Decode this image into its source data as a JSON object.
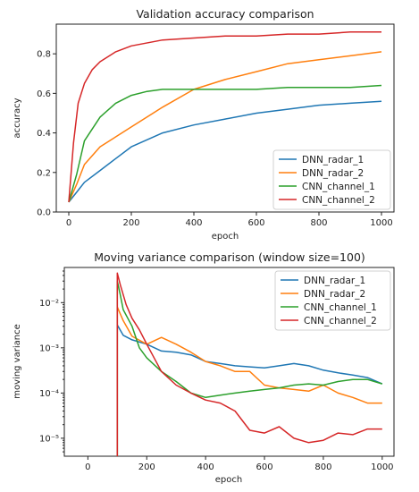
{
  "chart_data": [
    {
      "type": "line",
      "title": "Validation accuracy comparison",
      "xlabel": "epoch",
      "ylabel": "accuracy",
      "xlim": [
        -40,
        1040
      ],
      "ylim": [
        0,
        0.95
      ],
      "xticks": [
        0,
        200,
        400,
        600,
        800,
        1000
      ],
      "xtick_labels": [
        "0",
        "200",
        "400",
        "600",
        "800",
        "1000"
      ],
      "yticks": [
        0.0,
        0.2,
        0.4,
        0.6,
        0.8
      ],
      "ytick_labels": [
        "0.0",
        "0.2",
        "0.4",
        "0.6",
        "0.8"
      ],
      "legend": "bottom-right",
      "grid": false,
      "series": [
        {
          "name": "DNN_radar_1",
          "color": "#1f77b4",
          "x": [
            0,
            25,
            50,
            100,
            150,
            200,
            300,
            400,
            500,
            600,
            700,
            800,
            900,
            1000
          ],
          "y": [
            0.05,
            0.1,
            0.15,
            0.21,
            0.27,
            0.33,
            0.4,
            0.44,
            0.47,
            0.5,
            0.52,
            0.54,
            0.55,
            0.56
          ]
        },
        {
          "name": "DNN_radar_2",
          "color": "#ff7f0e",
          "x": [
            0,
            25,
            50,
            100,
            150,
            200,
            300,
            400,
            500,
            600,
            700,
            800,
            900,
            1000
          ],
          "y": [
            0.05,
            0.14,
            0.24,
            0.33,
            0.38,
            0.43,
            0.53,
            0.62,
            0.67,
            0.71,
            0.75,
            0.77,
            0.79,
            0.81
          ]
        },
        {
          "name": "CNN_channel_1",
          "color": "#2ca02c",
          "x": [
            0,
            25,
            50,
            100,
            150,
            200,
            250,
            300,
            400,
            500,
            600,
            700,
            800,
            900,
            1000
          ],
          "y": [
            0.05,
            0.19,
            0.36,
            0.48,
            0.55,
            0.59,
            0.61,
            0.62,
            0.62,
            0.62,
            0.62,
            0.63,
            0.63,
            0.63,
            0.64
          ]
        },
        {
          "name": "CNN_channel_2",
          "color": "#d62728",
          "x": [
            0,
            15,
            30,
            50,
            75,
            100,
            150,
            200,
            300,
            400,
            500,
            600,
            700,
            800,
            900,
            1000
          ],
          "y": [
            0.05,
            0.35,
            0.55,
            0.65,
            0.72,
            0.76,
            0.81,
            0.84,
            0.87,
            0.88,
            0.89,
            0.89,
            0.9,
            0.9,
            0.91,
            0.91
          ]
        }
      ]
    },
    {
      "type": "line",
      "title": "Moving variance comparison (window size=100)",
      "xlabel": "epoch",
      "ylabel": "moving variance",
      "yscale": "log",
      "xlim": [
        -80,
        1040
      ],
      "ylim": [
        4e-06,
        0.06
      ],
      "xticks": [
        0,
        200,
        400,
        600,
        800,
        1000
      ],
      "xtick_labels": [
        "0",
        "200",
        "400",
        "600",
        "800",
        "1000"
      ],
      "yticks": [
        1e-05,
        0.0001,
        0.001,
        0.01
      ],
      "ytick_labels": [
        "10⁻⁵",
        "10⁻⁴",
        "10⁻³",
        "10⁻²"
      ],
      "legend": "top-right",
      "grid": false,
      "series": [
        {
          "name": "DNN_radar_1",
          "color": "#1f77b4",
          "x": [
            100,
            120,
            150,
            200,
            250,
            300,
            350,
            400,
            450,
            500,
            550,
            600,
            650,
            700,
            750,
            800,
            850,
            900,
            950,
            1000
          ],
          "y": [
            0.0032,
            0.0019,
            0.0015,
            0.0012,
            0.00085,
            0.0008,
            0.0007,
            0.0005,
            0.00045,
            0.0004,
            0.00038,
            0.00036,
            0.0004,
            0.00045,
            0.0004,
            0.00032,
            0.00028,
            0.00025,
            0.00022,
            0.00016
          ]
        },
        {
          "name": "DNN_radar_2",
          "color": "#ff7f0e",
          "x": [
            100,
            120,
            150,
            200,
            250,
            300,
            350,
            400,
            450,
            500,
            550,
            600,
            650,
            700,
            750,
            800,
            850,
            900,
            950,
            1000
          ],
          "y": [
            0.008,
            0.004,
            0.0018,
            0.0012,
            0.0017,
            0.0012,
            0.0008,
            0.0005,
            0.0004,
            0.0003,
            0.0003,
            0.00015,
            0.00013,
            0.00012,
            0.00011,
            0.00015,
            0.0001,
            8e-05,
            6e-05,
            6e-05
          ]
        },
        {
          "name": "CNN_channel_1",
          "color": "#2ca02c",
          "x": [
            100,
            110,
            120,
            150,
            175,
            200,
            250,
            300,
            350,
            400,
            450,
            500,
            550,
            600,
            650,
            700,
            750,
            800,
            850,
            900,
            950,
            1000
          ],
          "y": [
            0.03,
            0.015,
            0.007,
            0.003,
            0.001,
            0.0006,
            0.0003,
            0.00018,
            0.0001,
            8e-05,
            9e-05,
            0.0001,
            0.00011,
            0.00012,
            0.00013,
            0.00015,
            0.00016,
            0.00015,
            0.00018,
            0.0002,
            0.0002,
            0.00016
          ]
        },
        {
          "name": "CNN_channel_2",
          "color": "#d62728",
          "x": [
            100,
            110,
            130,
            150,
            175,
            200,
            250,
            300,
            350,
            400,
            450,
            500,
            550,
            600,
            650,
            700,
            750,
            800,
            850,
            900,
            950,
            1000
          ],
          "y": [
            0.045,
            0.025,
            0.009,
            0.0045,
            0.0025,
            0.0012,
            0.0003,
            0.00015,
            0.0001,
            7e-05,
            6e-05,
            4e-05,
            1.5e-05,
            1.3e-05,
            1.8e-05,
            1e-05,
            8e-06,
            9e-06,
            1.3e-05,
            1.2e-05,
            1.6e-05,
            1.6e-05
          ]
        }
      ]
    }
  ]
}
